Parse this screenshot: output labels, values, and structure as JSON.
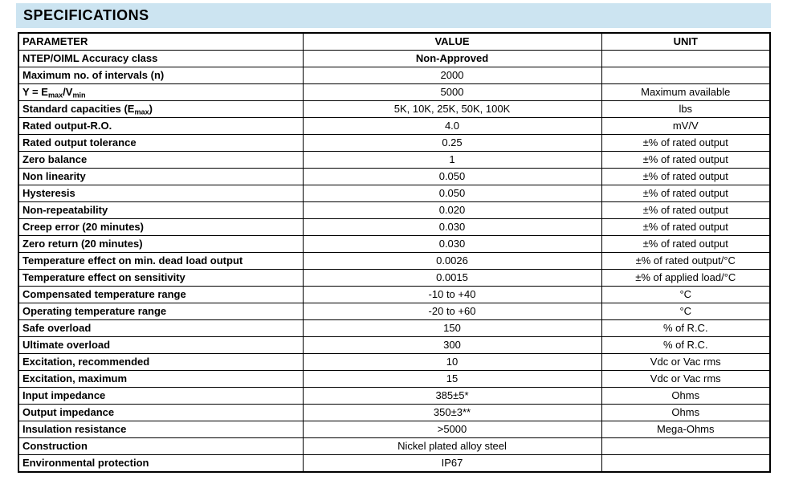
{
  "title": "SPECIFICATIONS",
  "colors": {
    "title_band_bg": "#cce4f1",
    "border": "#000000",
    "text": "#000000"
  },
  "table": {
    "headers": [
      "PARAMETER",
      "VALUE",
      "UNIT"
    ],
    "rows": [
      {
        "parameter": "NTEP/OIML Accuracy class",
        "value": "Non-Approved",
        "value_bold": true,
        "unit": ""
      },
      {
        "parameter": "Maximum no. of intervals (n)",
        "value": "2000",
        "unit": ""
      },
      {
        "parameter": [
          {
            "t": "Y = E"
          },
          {
            "t": "max",
            "sub": true
          },
          {
            "t": "/V"
          },
          {
            "t": "min",
            "sub": true
          }
        ],
        "value": "5000",
        "unit": "Maximum available"
      },
      {
        "parameter": [
          {
            "t": "Standard capacities (E"
          },
          {
            "t": "max",
            "sub": true
          },
          {
            "t": ")"
          }
        ],
        "value": "5K, 10K, 25K, 50K, 100K",
        "unit": "lbs"
      },
      {
        "parameter": "Rated output-R.O.",
        "value": "4.0",
        "unit": "mV/V"
      },
      {
        "parameter": "Rated output tolerance",
        "value": "0.25",
        "unit": "±% of rated output"
      },
      {
        "parameter": "Zero balance",
        "value": "1",
        "unit": "±% of rated output"
      },
      {
        "parameter": "Non linearity",
        "value": "0.050",
        "unit": "±% of rated output"
      },
      {
        "parameter": "Hysteresis",
        "value": "0.050",
        "unit": "±% of rated output"
      },
      {
        "parameter": "Non-repeatability",
        "value": "0.020",
        "unit": "±% of rated output"
      },
      {
        "parameter": "Creep error (20 minutes)",
        "value": "0.030",
        "unit": "±% of rated output"
      },
      {
        "parameter": "Zero return (20 minutes)",
        "value": "0.030",
        "unit": "±% of rated output"
      },
      {
        "parameter": "Temperature effect on min. dead load output",
        "value": "0.0026",
        "unit": "±% of rated output/°C"
      },
      {
        "parameter": "Temperature effect on sensitivity",
        "value": "0.0015",
        "unit": "±% of applied load/°C"
      },
      {
        "parameter": "Compensated temperature range",
        "value": "-10 to +40",
        "unit": "°C"
      },
      {
        "parameter": "Operating temperature range",
        "value": "-20 to +60",
        "unit": "°C"
      },
      {
        "parameter": "Safe overload",
        "value": "150",
        "unit": "% of R.C."
      },
      {
        "parameter": "Ultimate overload",
        "value": "300",
        "unit": "% of R.C."
      },
      {
        "parameter": "Excitation, recommended",
        "value": "10",
        "unit": "Vdc or Vac rms"
      },
      {
        "parameter": "Excitation, maximum",
        "value": "15",
        "unit": "Vdc or Vac rms"
      },
      {
        "parameter": "Input impedance",
        "value": "385±5*",
        "unit": "Ohms"
      },
      {
        "parameter": "Output impedance",
        "value": "350±3**",
        "unit": "Ohms"
      },
      {
        "parameter": "Insulation resistance",
        "value": ">5000",
        "unit": "Mega-Ohms"
      },
      {
        "parameter": "Construction",
        "value": "Nickel plated alloy steel",
        "unit": ""
      },
      {
        "parameter": "Environmental protection",
        "value": "IP67",
        "unit": ""
      }
    ]
  }
}
